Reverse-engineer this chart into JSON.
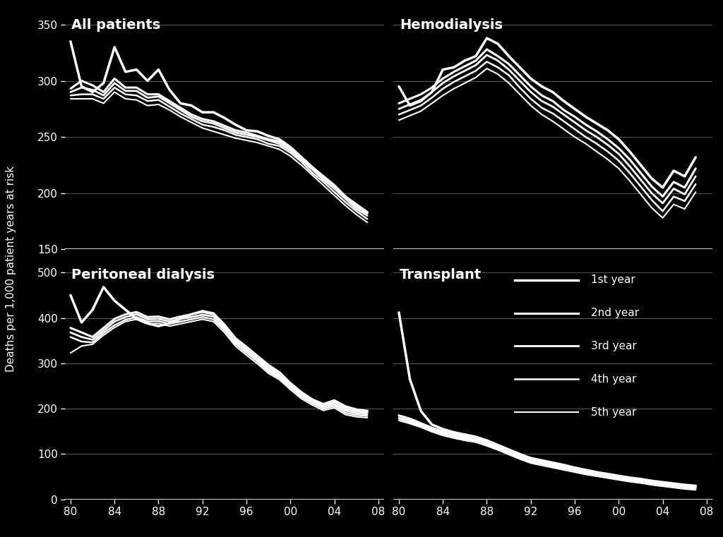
{
  "background_color": "#000000",
  "text_color": "#ffffff",
  "line_color": "#ffffff",
  "grid_color": "#555555",
  "title_fontsize": 14,
  "label_fontsize": 11,
  "tick_fontsize": 11,
  "ylabel": "Deaths per 1,000 patient years at risk",
  "years": [
    1980,
    1981,
    1982,
    1983,
    1984,
    1985,
    1986,
    1987,
    1988,
    1989,
    1990,
    1991,
    1992,
    1993,
    1994,
    1995,
    1996,
    1997,
    1998,
    1999,
    2000,
    2001,
    2002,
    2003,
    2004,
    2005,
    2006,
    2007
  ],
  "xtick_vals": [
    1980,
    1984,
    1988,
    1992,
    1996,
    2000,
    2004,
    2008
  ],
  "xtick_labels": [
    "80",
    "84",
    "88",
    "92",
    "96",
    "00",
    "04",
    "08"
  ],
  "panels": {
    "all_patients": {
      "title": "All patients",
      "ylim": [
        150,
        360
      ],
      "yticks": [
        150,
        200,
        250,
        300,
        350
      ],
      "data": {
        "yr1": [
          335,
          295,
          290,
          298,
          330,
          308,
          310,
          300,
          310,
          292,
          280,
          278,
          272,
          272,
          267,
          261,
          256,
          255,
          251,
          248,
          241,
          232,
          223,
          215,
          207,
          197,
          190,
          183
        ],
        "yr2": [
          293,
          300,
          296,
          290,
          302,
          294,
          294,
          288,
          288,
          282,
          276,
          270,
          266,
          264,
          260,
          256,
          254,
          251,
          248,
          246,
          240,
          232,
          223,
          214,
          206,
          197,
          188,
          182
        ],
        "yr3": [
          290,
          294,
          292,
          287,
          298,
          291,
          291,
          285,
          286,
          280,
          274,
          268,
          264,
          262,
          258,
          254,
          252,
          250,
          247,
          244,
          238,
          230,
          221,
          212,
          204,
          195,
          186,
          180
        ],
        "yr4": [
          287,
          288,
          288,
          284,
          294,
          288,
          287,
          282,
          283,
          277,
          271,
          266,
          261,
          259,
          256,
          252,
          250,
          248,
          244,
          242,
          236,
          228,
          218,
          210,
          201,
          192,
          184,
          177
        ],
        "yr5": [
          284,
          284,
          284,
          280,
          290,
          284,
          283,
          278,
          279,
          274,
          268,
          263,
          258,
          255,
          252,
          249,
          247,
          245,
          242,
          239,
          233,
          225,
          216,
          207,
          198,
          189,
          181,
          174
        ]
      }
    },
    "hemodialysis": {
      "title": "Hemodialysis",
      "ylim": [
        150,
        360
      ],
      "yticks": [
        150,
        200,
        250,
        300,
        350
      ],
      "data": {
        "yr1": [
          295,
          278,
          282,
          290,
          310,
          312,
          318,
          322,
          338,
          333,
          322,
          312,
          302,
          295,
          290,
          282,
          275,
          268,
          262,
          256,
          248,
          237,
          225,
          213,
          205,
          220,
          215,
          232
        ],
        "yr2": [
          280,
          284,
          288,
          294,
          302,
          308,
          313,
          318,
          328,
          322,
          315,
          305,
          295,
          287,
          282,
          274,
          268,
          261,
          255,
          248,
          240,
          230,
          218,
          206,
          197,
          210,
          205,
          222
        ],
        "yr3": [
          275,
          279,
          283,
          290,
          298,
          304,
          309,
          314,
          323,
          318,
          310,
          300,
          290,
          282,
          277,
          270,
          263,
          256,
          250,
          243,
          235,
          224,
          212,
          200,
          191,
          204,
          199,
          215
        ],
        "yr4": [
          270,
          274,
          278,
          285,
          293,
          299,
          304,
          309,
          317,
          312,
          305,
          294,
          284,
          276,
          271,
          264,
          257,
          250,
          244,
          237,
          229,
          218,
          206,
          194,
          184,
          197,
          193,
          208
        ],
        "yr5": [
          265,
          269,
          273,
          280,
          287,
          293,
          298,
          303,
          311,
          306,
          298,
          288,
          278,
          270,
          264,
          257,
          250,
          244,
          237,
          230,
          222,
          211,
          199,
          187,
          178,
          190,
          186,
          201
        ]
      }
    },
    "peritoneal": {
      "title": "Peritoneal dialysis",
      "ylim": [
        0,
        520
      ],
      "yticks": [
        0,
        100,
        200,
        300,
        400,
        500
      ],
      "data": {
        "yr1": [
          450,
          390,
          418,
          468,
          438,
          418,
          398,
          388,
          382,
          388,
          398,
          408,
          415,
          410,
          385,
          355,
          336,
          316,
          296,
          280,
          256,
          236,
          220,
          210,
          218,
          205,
          198,
          195
        ],
        "yr2": [
          378,
          368,
          358,
          378,
          398,
          408,
          413,
          402,
          403,
          397,
          403,
          408,
          413,
          408,
          382,
          350,
          332,
          312,
          290,
          276,
          254,
          234,
          220,
          208,
          214,
          200,
          194,
          192
        ],
        "yr3": [
          368,
          358,
          352,
          372,
          392,
          402,
          408,
          397,
          398,
          392,
          398,
          402,
          407,
          403,
          378,
          347,
          328,
          308,
          286,
          272,
          250,
          230,
          216,
          204,
          210,
          196,
          190,
          188
        ],
        "yr4": [
          358,
          348,
          346,
          367,
          384,
          396,
          402,
          392,
          393,
          387,
          392,
          397,
          402,
          397,
          373,
          343,
          323,
          304,
          282,
          268,
          246,
          226,
          212,
          200,
          206,
          191,
          186,
          184
        ],
        "yr5": [
          323,
          338,
          342,
          362,
          379,
          392,
          397,
          387,
          388,
          382,
          387,
          392,
          397,
          392,
          368,
          338,
          318,
          299,
          278,
          264,
          242,
          222,
          208,
          196,
          202,
          187,
          182,
          180
        ]
      }
    },
    "transplant": {
      "title": "Transplant",
      "ylim": [
        0,
        520
      ],
      "yticks": [
        0,
        100,
        200,
        300,
        400,
        500
      ],
      "data": {
        "yr1": [
          412,
          265,
          195,
          165,
          155,
          148,
          143,
          138,
          130,
          120,
          110,
          100,
          91,
          86,
          81,
          76,
          70,
          65,
          60,
          56,
          52,
          48,
          45,
          41,
          38,
          35,
          32,
          30
        ],
        "yr2": [
          185,
          178,
          168,
          158,
          150,
          144,
          139,
          135,
          127,
          118,
          108,
          98,
          89,
          84,
          79,
          74,
          68,
          63,
          58,
          54,
          50,
          46,
          43,
          39,
          36,
          33,
          30,
          28
        ],
        "yr3": [
          180,
          174,
          165,
          155,
          147,
          141,
          136,
          132,
          124,
          115,
          105,
          95,
          86,
          81,
          76,
          71,
          66,
          60,
          56,
          52,
          48,
          44,
          41,
          37,
          34,
          31,
          28,
          26
        ],
        "yr4": [
          178,
          170,
          162,
          152,
          144,
          138,
          133,
          129,
          121,
          112,
          102,
          92,
          83,
          78,
          73,
          68,
          63,
          58,
          54,
          50,
          46,
          42,
          39,
          35,
          32,
          29,
          26,
          24
        ],
        "yr5": [
          174,
          167,
          159,
          149,
          141,
          135,
          130,
          126,
          118,
          109,
          99,
          89,
          80,
          75,
          70,
          65,
          60,
          55,
          51,
          47,
          43,
          39,
          36,
          32,
          29,
          26,
          23,
          21
        ]
      }
    }
  },
  "legend_labels": [
    "1st year",
    "2nd year",
    "3rd year",
    "4th year",
    "5th year"
  ],
  "line_widths": [
    2.5,
    2.2,
    2.0,
    1.8,
    1.5
  ]
}
